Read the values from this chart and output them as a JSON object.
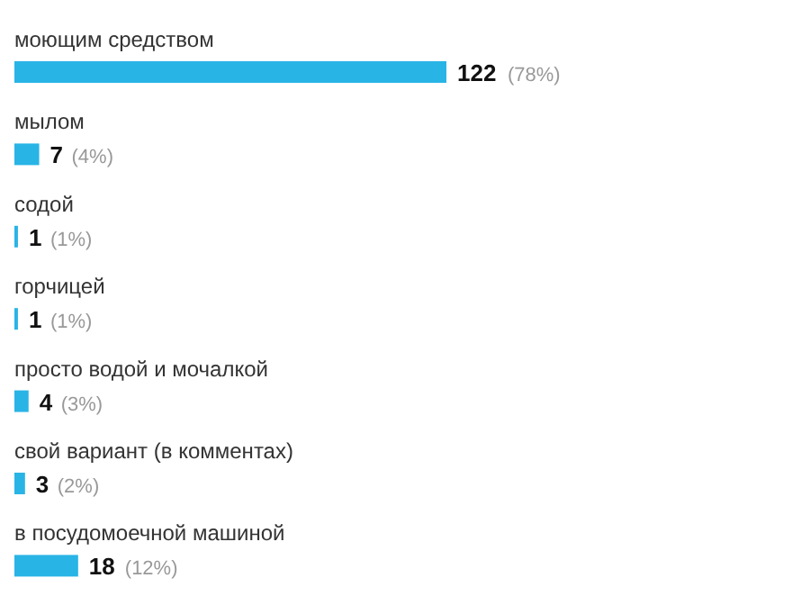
{
  "chart_data": {
    "type": "bar",
    "orientation": "horizontal",
    "categories": [
      "моющим средством",
      "мылом",
      "содой",
      "горчицей",
      "просто водой и мочалкой",
      "свой вариант (в комментах)",
      "в посудомоечной машиной"
    ],
    "values": [
      122,
      7,
      1,
      1,
      4,
      3,
      18
    ],
    "color": "#29b4e6",
    "data_labels": true,
    "annotations": [
      "(78%)",
      "(4%)",
      "(1%)",
      "(1%)",
      "(3%)",
      "(2%)",
      "(12%)"
    ]
  }
}
